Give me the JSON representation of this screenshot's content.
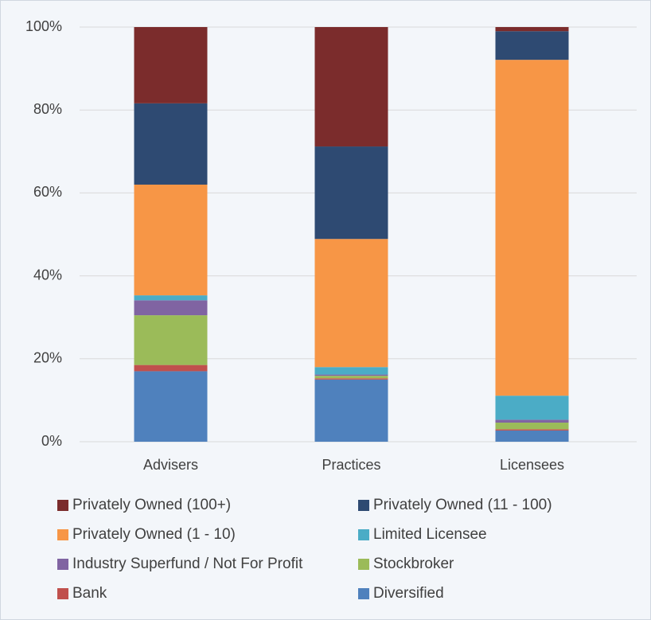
{
  "chart_data": {
    "type": "stacked_bar",
    "categories": [
      "Advisers",
      "Practices",
      "Licensees"
    ],
    "series": [
      {
        "name": "Privately Owned (100+)",
        "color": "#7b2c2c",
        "values": [
          18.4,
          28.8,
          1
        ]
      },
      {
        "name": "Privately Owned (11 - 100)",
        "color": "#2e4a72",
        "values": [
          19.6,
          22.3,
          6.9
        ]
      },
      {
        "name": "Privately Owned (1 - 10)",
        "color": "#f79646",
        "values": [
          26.7,
          30.9,
          81
        ]
      },
      {
        "name": "Limited Licensee",
        "color": "#4bacc6",
        "values": [
          1.2,
          1.8,
          5.8
        ]
      },
      {
        "name": "Industry Superfund / Not For Profit",
        "color": "#8064a2",
        "values": [
          3.6,
          0.3,
          0.7
        ]
      },
      {
        "name": "Stockbroker",
        "color": "#9bbb59",
        "values": [
          12,
          0.6,
          1.6
        ]
      },
      {
        "name": "Bank",
        "color": "#c0504d",
        "values": [
          1.5,
          0.3,
          0.3
        ]
      },
      {
        "name": "Diversified",
        "color": "#4f81bd",
        "values": [
          17,
          15,
          2.7
        ]
      }
    ],
    "ylim": [
      0,
      100
    ],
    "yticks": [
      {
        "value": 0,
        "label": "0%"
      },
      {
        "value": 20,
        "label": "20%"
      },
      {
        "value": 40,
        "label": "40%"
      },
      {
        "value": 60,
        "label": "60%"
      },
      {
        "value": 80,
        "label": "80%"
      },
      {
        "value": 100,
        "label": "100%"
      }
    ],
    "grid": true
  }
}
